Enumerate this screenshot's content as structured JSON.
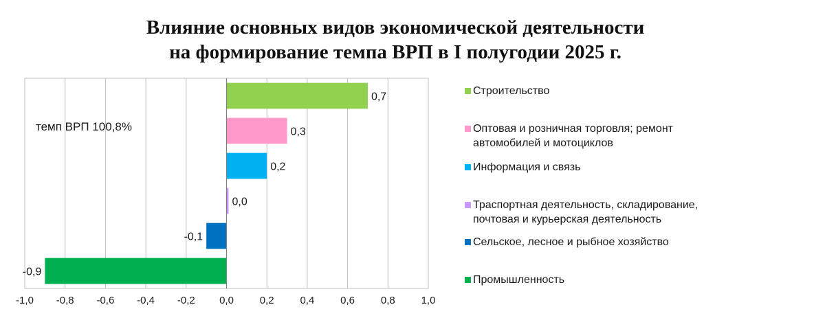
{
  "title": {
    "line1": "Влияние основных видов экономической деятельности",
    "line2": "на формирование темпа ВРП в I полугодии 2025 г."
  },
  "annotation": "темп ВРП 100,8%",
  "chart_data": {
    "type": "bar",
    "orientation": "horizontal",
    "title": "Влияние основных видов экономической деятельности на формирование темпа ВРП в I полугодии 2025 г.",
    "xlim": [
      -1.0,
      1.0
    ],
    "xticks": [
      -1.0,
      -0.8,
      -0.6,
      -0.4,
      -0.2,
      0.0,
      0.2,
      0.4,
      0.6,
      0.8,
      1.0
    ],
    "xtick_labels": [
      "-1,0",
      "-0,8",
      "-0,6",
      "-0,4",
      "-0,2",
      "0,0",
      "0,2",
      "0,4",
      "0,6",
      "0,8",
      "1,0"
    ],
    "grid": "vertical",
    "legend_position": "right",
    "categories": [
      "Строительство",
      "Оптовая и розничная торговля; ремонт автомобилей и мотоциклов",
      "Информация и связь",
      "Траспортная деятельность, складирование, почтовая и курьерская деятельность",
      "Сельское, лесное и рыбное хозяйство",
      "Промышленность"
    ],
    "values": [
      0.7,
      0.3,
      0.2,
      0.0,
      -0.1,
      -0.9
    ],
    "value_labels": [
      "0,7",
      "0,3",
      "0,2",
      "0,0",
      "-0,1",
      "-0,9"
    ],
    "colors": [
      "#92d050",
      "#ff99cc",
      "#00b0f0",
      "#cc99ff",
      "#0070c0",
      "#00b050"
    ],
    "legend_labels": [
      "Строительство",
      "Оптовая и розничная торговля; ремонт\nавтомобилей и мотоциклов",
      "Информация и связь",
      "Траспортная деятельность, складирование,\nпочтовая и курьерская деятельность",
      "Сельское, лесное и рыбное хозяйство",
      "Промышленность"
    ]
  }
}
